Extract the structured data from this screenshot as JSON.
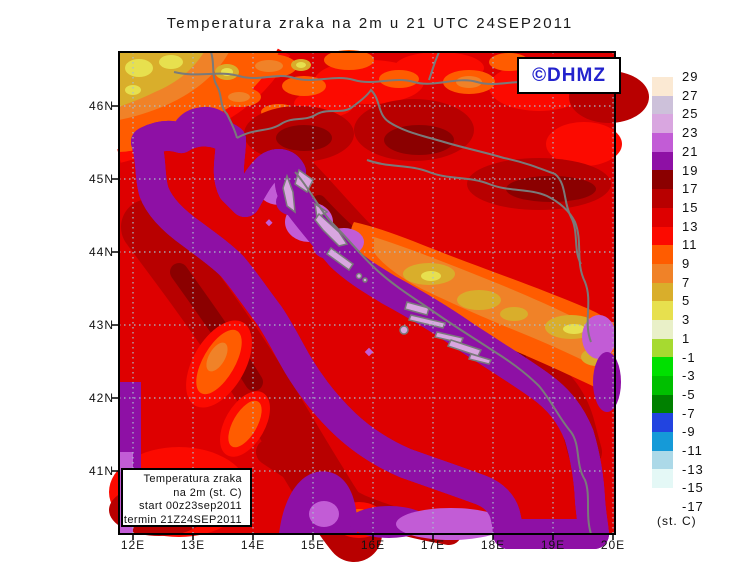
{
  "title": "Temperatura zraka na 2m u 21 UTC 24SEP2011",
  "logo": {
    "text": "©DHMZ",
    "color": "#2323CD"
  },
  "info_box": {
    "lines": [
      "Temperatura zraka",
      "na 2m (st. C)",
      "start 00z23sep2011",
      "termin 21Z24SEP2011"
    ]
  },
  "axes": {
    "x_ticks": [
      "12E",
      "13E",
      "14E",
      "15E",
      "16E",
      "17E",
      "18E",
      "19E",
      "20E"
    ],
    "y_ticks": [
      "46N",
      "45N",
      "44N",
      "43N",
      "42N",
      "41N"
    ]
  },
  "legend": {
    "unit_label": "(st. C)",
    "tick_labels": [
      "29",
      "27",
      "25",
      "23",
      "21",
      "19",
      "17",
      "15",
      "13",
      "11",
      "9",
      "7",
      "5",
      "3",
      "1",
      "-1",
      "-3",
      "-5",
      "-7",
      "-9",
      "-11",
      "-13",
      "-15",
      "-17"
    ],
    "colors": [
      "#FBE9D3",
      "#CDC1DA",
      "#D9A6E0",
      "#C25CD6",
      "#8E10A5",
      "#8B0000",
      "#B80000",
      "#DE0000",
      "#FC0A00",
      "#FF5C00",
      "#F08228",
      "#D9AE2B",
      "#E7E04E",
      "#E9F0C8",
      "#A6DA30",
      "#00E000",
      "#00BF00",
      "#008000",
      "#2244E0",
      "#159AD8",
      "#ACD9E8",
      "#E4F8F6",
      "#FFFFFF"
    ]
  },
  "map_colors": {
    "sea_23_25": "#D9A6E0",
    "coast_21_23": "#C25CD6",
    "coast_19_21": "#8E10A5",
    "land_17_19": "#8B0000",
    "land_15_17": "#B80000",
    "land_13_15": "#DE0000",
    "land_11_13": "#FC0A00",
    "land_9_11": "#FF5C00",
    "land_7_9": "#F08228",
    "land_5_7": "#D9AE2B",
    "land_3_5": "#E7E04E",
    "grid": "#A8BFCB",
    "border": "#7a7a7a"
  }
}
